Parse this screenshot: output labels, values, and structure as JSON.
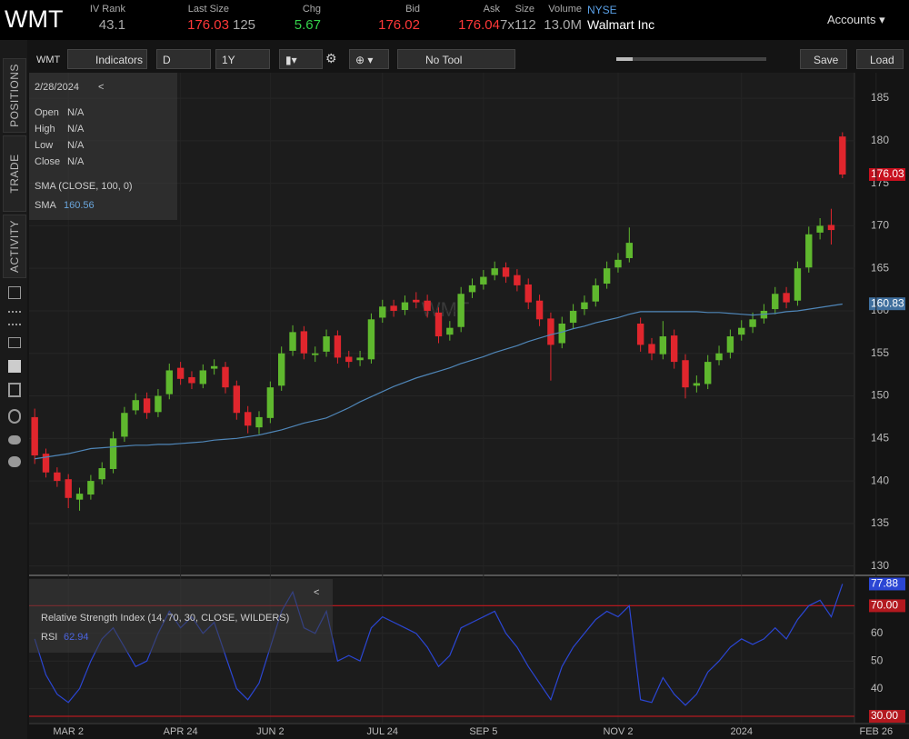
{
  "header": {
    "symbol": "WMT",
    "fields": [
      {
        "label": "IV Rank",
        "value": "43.1"
      },
      {
        "label": "Last Size",
        "value": "176.03",
        "extra": "125"
      },
      {
        "label": "Chg",
        "value": "5.67"
      },
      {
        "label": "Bid",
        "value": "176.02"
      },
      {
        "label": "Ask",
        "value": "176.04"
      },
      {
        "label": "Size",
        "value": "7x112"
      },
      {
        "label": "Volume",
        "value": "13.0M"
      }
    ],
    "exchange": "NYSE",
    "company": "Walmart Inc",
    "accounts": "Accounts"
  },
  "toolbar": {
    "symbol": "WMT",
    "indicators": "Indicators",
    "aggregation": "D",
    "period": "1Y",
    "tool": "No Tool",
    "save": "Save",
    "load": "Load"
  },
  "sidebar": {
    "tabs": [
      "POSITIONS",
      "TRADE",
      "ACTIVITY"
    ]
  },
  "info_panel": {
    "date": "2/28/2024",
    "collapse": "<",
    "rows": [
      {
        "label": "Open",
        "value": "N/A"
      },
      {
        "label": "High",
        "value": "N/A"
      },
      {
        "label": "Low",
        "value": "N/A"
      },
      {
        "label": "Close",
        "value": "N/A"
      }
    ],
    "study": "SMA (CLOSE, 100, 0)",
    "study_label": "SMA",
    "study_value": "160.56"
  },
  "rsi_panel": {
    "collapse": "<",
    "study": "Relative Strength Index (14, 70, 30, CLOSE, WILDERS)",
    "study_label": "RSI",
    "study_value": "62.94"
  },
  "chart_data": [
    {
      "type": "candlestick",
      "watermark": "WMT",
      "categories": [
        null,
        null,
        null,
        "MAR 2",
        null,
        null,
        null,
        null,
        null,
        null,
        null,
        null,
        null,
        "APR 24",
        null,
        null,
        null,
        null,
        null,
        null,
        null,
        "JUN 2",
        null,
        null,
        null,
        null,
        null,
        null,
        null,
        null,
        null,
        "JUL 24",
        null,
        null,
        null,
        null,
        null,
        null,
        null,
        null,
        "SEP 5",
        null,
        null,
        null,
        null,
        null,
        null,
        null,
        null,
        null,
        null,
        null,
        "NOV 2",
        null,
        null,
        null,
        null,
        null,
        null,
        null,
        null,
        null,
        null,
        "2024",
        null,
        null,
        null,
        null,
        null,
        null,
        null,
        null,
        null,
        null,
        null,
        "FEB 26"
      ],
      "open": [
        147.5,
        143.2,
        141,
        140.2,
        137.8,
        138.4,
        140.2,
        141.4,
        145.2,
        148.3,
        149.7,
        148.1,
        150.2,
        153.3,
        152.2,
        151.4,
        153.2,
        153.4,
        151.2,
        148.1,
        146.3,
        147.4,
        151.2,
        155.3,
        157.6,
        154.8,
        155.2,
        157.1,
        154.6,
        154.2,
        154.3,
        159.2,
        160.6,
        160.1,
        161.3,
        161.2,
        159.8,
        157.2,
        158.1,
        162.2,
        163.1,
        164.2,
        165.1,
        164.2,
        163.1,
        161.2,
        159.1,
        156.2,
        158.6,
        160.2,
        161.1,
        163.2,
        165.1,
        166.2,
        158.5,
        156.1,
        154.9,
        157.1,
        154.2,
        151.2,
        151.4,
        154.2,
        155.1,
        157.2,
        158.1,
        159.1,
        160.2,
        162.1,
        161.2,
        165.1,
        169.2,
        170.1,
        180.5,
        null,
        null,
        null
      ],
      "high": [
        148.5,
        143.8,
        141.6,
        140.8,
        139.2,
        140.7,
        142.2,
        145.8,
        148.7,
        150.3,
        150.4,
        150.8,
        153.8,
        154,
        152.9,
        153.7,
        154.3,
        154,
        151.8,
        148.8,
        148.2,
        151.7,
        155.8,
        158.3,
        158.2,
        155.8,
        157.8,
        157.7,
        155.3,
        155.3,
        159.7,
        161.3,
        161.3,
        161.8,
        162.2,
        161.9,
        160.4,
        158.8,
        162.8,
        163.8,
        164.8,
        165.8,
        165.7,
        164.9,
        163.8,
        161.9,
        159.8,
        159.3,
        160.8,
        161.8,
        163.8,
        165.8,
        166.8,
        169.8,
        159.2,
        156.8,
        158.8,
        157.8,
        154.9,
        152.4,
        154.8,
        155.9,
        157.8,
        158.9,
        159.8,
        160.8,
        162.8,
        162.8,
        165.8,
        169.9,
        170.9,
        172,
        181,
        null,
        null,
        null
      ],
      "low": [
        142,
        140.4,
        139.3,
        136.8,
        136.5,
        137.8,
        139.6,
        140.9,
        144.6,
        147.8,
        147.3,
        147.5,
        149.6,
        151.3,
        150.8,
        150.9,
        152.5,
        150.3,
        147.2,
        145.6,
        145.5,
        146.8,
        150.6,
        154.7,
        154.3,
        154,
        154.6,
        153.8,
        153.3,
        153.5,
        153.8,
        158.6,
        159.3,
        159.5,
        160.3,
        159.2,
        156.2,
        156.5,
        157.5,
        161.5,
        162.5,
        163.6,
        163.3,
        162.3,
        160.2,
        158.2,
        151.8,
        155.6,
        157.9,
        159.5,
        160.5,
        162.6,
        164.5,
        165.7,
        155.2,
        154.2,
        154.3,
        153.2,
        149.7,
        150.4,
        150.8,
        153.6,
        154.4,
        156.5,
        157.4,
        158.5,
        159.6,
        160.3,
        160.6,
        164.5,
        168.4,
        167.8,
        175.6,
        null,
        null,
        null
      ],
      "close": [
        143,
        141,
        140,
        138,
        138.5,
        140,
        141.5,
        145,
        148,
        149.5,
        148,
        150,
        153,
        152,
        151.5,
        153,
        153.5,
        151,
        148,
        146.5,
        147.5,
        151,
        155,
        157.5,
        155,
        155,
        157,
        154.5,
        154,
        154.5,
        159,
        160.5,
        160,
        161,
        161,
        160,
        157,
        158,
        162,
        163,
        164,
        165,
        164,
        163,
        161,
        159,
        156,
        158.5,
        160,
        161,
        163,
        165,
        166,
        168,
        156,
        155,
        157,
        154,
        151,
        151.5,
        154,
        155,
        157,
        158,
        159,
        160,
        162,
        161,
        165,
        169,
        170,
        169.5,
        176.03,
        null,
        null,
        null
      ],
      "up_color": "#5fb82e",
      "down_color": "#e0262d",
      "sma": {
        "color": "#4f86b8",
        "values": [
          142.6,
          142.8,
          143.0,
          143.2,
          143.5,
          143.8,
          143.9,
          144.0,
          144.1,
          144.2,
          144.2,
          144.3,
          144.3,
          144.4,
          144.5,
          144.6,
          144.8,
          144.9,
          145.0,
          145.2,
          145.4,
          145.7,
          146.0,
          146.4,
          146.8,
          147.1,
          147.4,
          148.0,
          148.6,
          149.3,
          149.9,
          150.5,
          151.1,
          151.6,
          152.1,
          152.5,
          152.9,
          153.3,
          153.8,
          154.2,
          154.6,
          155.1,
          155.5,
          155.9,
          156.4,
          156.8,
          157.2,
          157.5,
          157.9,
          158.2,
          158.6,
          158.9,
          159.2,
          159.6,
          159.9,
          159.9,
          159.9,
          159.9,
          159.9,
          159.9,
          159.8,
          159.8,
          159.7,
          159.6,
          159.5,
          159.6,
          159.7,
          159.9,
          160.0,
          160.2,
          160.4,
          160.6,
          160.8,
          null,
          null,
          null
        ]
      },
      "markers": [
        {
          "value": 176.03,
          "color": "#c8101e"
        },
        {
          "value": 160.83,
          "color": "#3f6f9e"
        }
      ],
      "ylim": [
        129,
        188
      ],
      "yticks": [
        130,
        135,
        140,
        145,
        150,
        155,
        160,
        165,
        170,
        175,
        180,
        185
      ],
      "grid": true
    },
    {
      "type": "line",
      "series": [
        {
          "color": "#2b46d4",
          "values": [
            58,
            45,
            38,
            35,
            40,
            50,
            58,
            62,
            55,
            48,
            50,
            60,
            68,
            62,
            66,
            60,
            64,
            52,
            40,
            36,
            42,
            55,
            68,
            75,
            62,
            60,
            68,
            50,
            52,
            50,
            62,
            66,
            64,
            62,
            60,
            55,
            48,
            52,
            62,
            64,
            66,
            68,
            60,
            55,
            48,
            42,
            36,
            48,
            55,
            60,
            65,
            68,
            66,
            70,
            36,
            35,
            44,
            38,
            34,
            38,
            46,
            50,
            55,
            58,
            56,
            58,
            62,
            58,
            65,
            70,
            72,
            66,
            77.88,
            null,
            null,
            null
          ]
        }
      ],
      "levels": [
        {
          "value": 70,
          "label": "70.00"
        },
        {
          "value": 30,
          "label": "30.00"
        }
      ],
      "level_color": "#b3191f",
      "markers": [
        {
          "value": 77.88,
          "color": "#2b46d4"
        }
      ],
      "ylim": [
        27.7,
        80
      ],
      "yticks": [
        40,
        50,
        60
      ],
      "grid": true
    }
  ]
}
